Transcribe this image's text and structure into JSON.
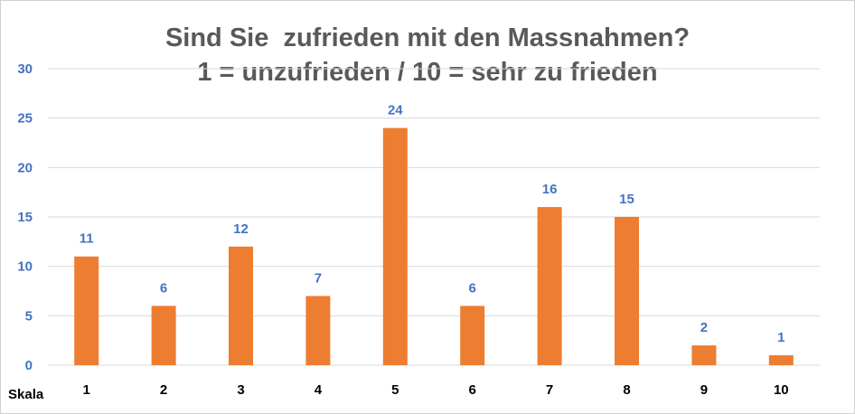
{
  "chart_data": {
    "type": "bar",
    "title": "Sind Sie  zufrieden mit den Massnahmen?",
    "subtitle": "1 = unzufrieden / 10 = sehr zu frieden",
    "xlabel": "Skala",
    "ylabel": "",
    "categories": [
      "1",
      "2",
      "3",
      "4",
      "5",
      "6",
      "7",
      "8",
      "9",
      "10"
    ],
    "values": [
      11,
      6,
      12,
      7,
      24,
      6,
      16,
      15,
      2,
      1
    ],
    "yticks": [
      0,
      5,
      10,
      15,
      20,
      25,
      30
    ],
    "ylim": [
      0,
      30
    ],
    "grid": true,
    "legend": "none",
    "data_labels": true,
    "colors": {
      "bar": "#ed7d31",
      "data_label": "#4472c4",
      "y_tick": "#4472c4",
      "title": "#595959",
      "grid": "#d9d9d9"
    }
  }
}
